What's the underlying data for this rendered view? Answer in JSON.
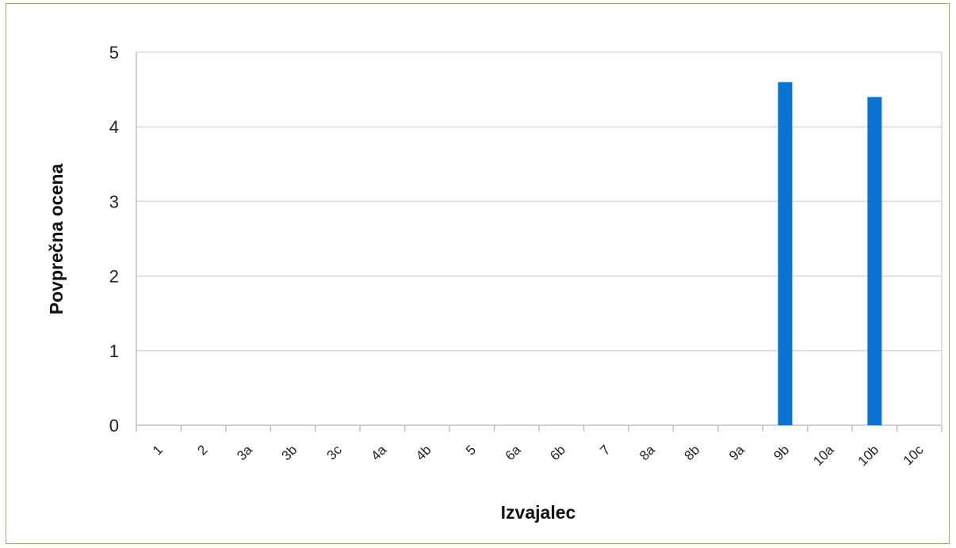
{
  "chart_data": {
    "type": "bar",
    "title": "",
    "xlabel": "Izvajalec",
    "ylabel": "Povprečna ocena",
    "categories": [
      "1",
      "2",
      "3a",
      "3b",
      "3c",
      "4a",
      "4b",
      "5",
      "6a",
      "6b",
      "7",
      "8a",
      "8b",
      "9a",
      "9b",
      "10a",
      "10b",
      "10c"
    ],
    "values": [
      0,
      0,
      0,
      0,
      0,
      0,
      0,
      0,
      0,
      0,
      0,
      0,
      0,
      0,
      4.6,
      0,
      4.4,
      0
    ],
    "ylim": [
      0,
      5
    ],
    "yticks": [
      "0",
      "1",
      "2",
      "3",
      "4",
      "5"
    ],
    "grid": true,
    "legend": "none",
    "bar_color": "#0a72d0",
    "grid_color": "#d9d9d9"
  }
}
